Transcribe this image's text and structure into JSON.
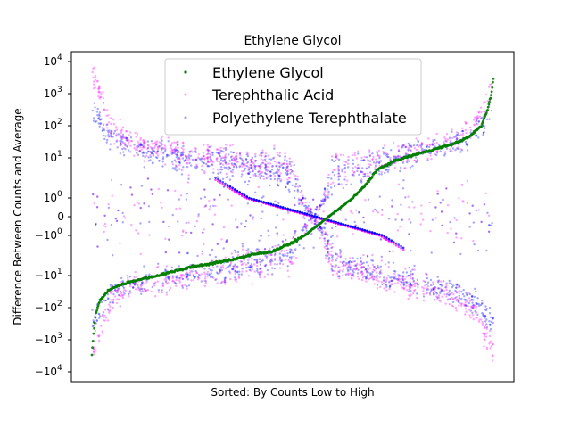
{
  "chart_data": {
    "type": "scatter",
    "title": "Ethylene Glycol",
    "xlabel": "Sorted: By Counts Low to High",
    "ylabel": "Difference Between Counts and Average",
    "y_scale": "symlog",
    "y_ticks": [
      {
        "value": 10000,
        "label": "10",
        "exp": "4"
      },
      {
        "value": 1000,
        "label": "10",
        "exp": "3"
      },
      {
        "value": 100,
        "label": "10",
        "exp": "2"
      },
      {
        "value": 10,
        "label": "10",
        "exp": "1"
      },
      {
        "value": 1,
        "label": "10",
        "exp": "0"
      },
      {
        "value": 0,
        "label": "0",
        "exp": ""
      },
      {
        "value": -1,
        "label": "−10",
        "exp": "0"
      },
      {
        "value": -10,
        "label": "−10",
        "exp": "1"
      },
      {
        "value": -100,
        "label": "−10",
        "exp": "2"
      },
      {
        "value": -1000,
        "label": "−10",
        "exp": "3"
      },
      {
        "value": -10000,
        "label": "−10",
        "exp": "4"
      }
    ],
    "xlim": [
      0,
      1
    ],
    "ylim": [
      -20000,
      20000
    ],
    "x_ticks_shown": false,
    "grid": false,
    "legend_position": "top-center",
    "series": [
      {
        "name": "Ethylene Glycol",
        "color": "#008000",
        "x": [
          0.0,
          0.002,
          0.005,
          0.01,
          0.02,
          0.04,
          0.06,
          0.1,
          0.15,
          0.2,
          0.25,
          0.3,
          0.35,
          0.4,
          0.45,
          0.5,
          0.53,
          0.56,
          0.59,
          0.62,
          0.65,
          0.68,
          0.71,
          0.75,
          0.8,
          0.85,
          0.9,
          0.94,
          0.97,
          0.985,
          0.995,
          1.0
        ],
        "values": [
          -3000,
          -1500,
          -500,
          -150,
          -60,
          -30,
          -22,
          -15,
          -11,
          -8,
          -6,
          -5,
          -4,
          -3,
          -2.5,
          -1.5,
          -1,
          -0.5,
          0,
          0.5,
          1,
          2,
          5,
          8,
          12,
          18,
          27,
          45,
          100,
          300,
          1000,
          3000
        ]
      },
      {
        "name": "Terephthalic Acid",
        "color": "#ff00ff",
        "x": [
          0.0,
          0.05,
          0.1,
          0.2,
          0.3,
          0.4,
          0.5,
          0.6,
          0.7,
          0.8,
          0.9,
          0.95,
          1.0
        ],
        "values": [
          5000,
          80,
          30,
          15,
          10,
          7,
          5,
          -5,
          -10,
          -20,
          -40,
          -100,
          -2000
        ],
        "values_mirror": [
          -3000,
          -60,
          -20,
          -12,
          -8,
          -6,
          -4,
          5,
          8,
          15,
          35,
          80,
          1500
        ]
      },
      {
        "name": "Polyethylene Terephthalate",
        "color": "#0000ff",
        "x": [
          0.0,
          0.05,
          0.1,
          0.2,
          0.3,
          0.4,
          0.5,
          0.6,
          0.7,
          0.8,
          0.9,
          0.95,
          1.0
        ],
        "values": [
          300,
          40,
          20,
          12,
          8,
          6,
          4,
          -4,
          -8,
          -15,
          -30,
          -60,
          -300
        ],
        "values_mirror": [
          -300,
          -40,
          -18,
          -10,
          -7,
          -5,
          -3,
          4,
          7,
          14,
          30,
          60,
          300
        ]
      }
    ]
  }
}
